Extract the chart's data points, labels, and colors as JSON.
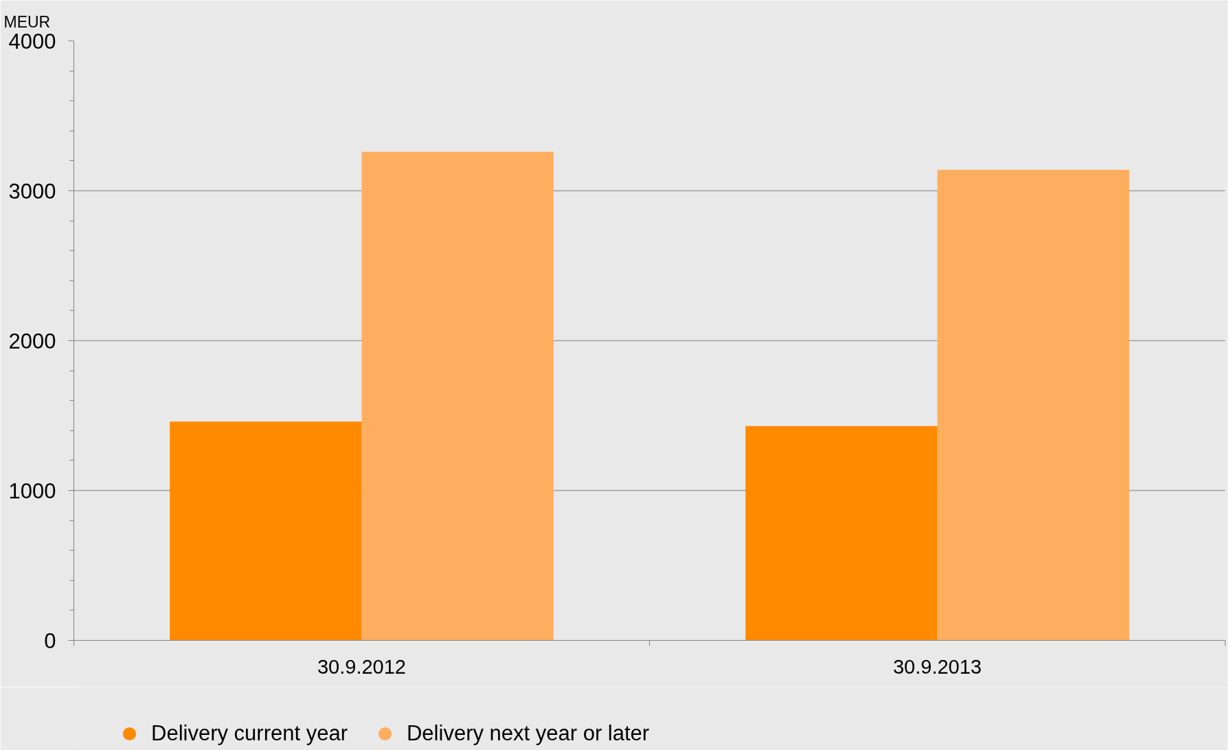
{
  "chart_data": {
    "type": "bar",
    "ylabel": "MEUR",
    "categories": [
      "30.9.2012",
      "30.9.2013"
    ],
    "series": [
      {
        "name": "Delivery current year",
        "color": "#ff8a00",
        "values": [
          1460,
          1430
        ]
      },
      {
        "name": "Delivery next year or later",
        "color": "#ffae5f",
        "values": [
          3260,
          3140
        ]
      }
    ],
    "ylim": [
      0,
      4000
    ],
    "yticks": [
      0,
      {
        "value": 200,
        "label": null
      },
      {
        "value": 400,
        "label": null
      },
      {
        "value": 600,
        "label": null
      },
      {
        "value": 800,
        "label": null
      },
      1000,
      {
        "value": 1200,
        "label": null
      },
      {
        "value": 1400,
        "label": null
      },
      {
        "value": 1600,
        "label": null
      },
      {
        "value": 1800,
        "label": null
      },
      2000,
      {
        "value": 2200,
        "label": null
      },
      {
        "value": 2400,
        "label": null
      },
      {
        "value": 2600,
        "label": null
      },
      {
        "value": 2800,
        "label": null
      },
      3000,
      {
        "value": 3200,
        "label": null
      },
      {
        "value": 3400,
        "label": null
      },
      {
        "value": 3600,
        "label": null
      },
      {
        "value": 3800,
        "label": null
      },
      4000
    ],
    "grid": "y",
    "legend": "bottom"
  }
}
